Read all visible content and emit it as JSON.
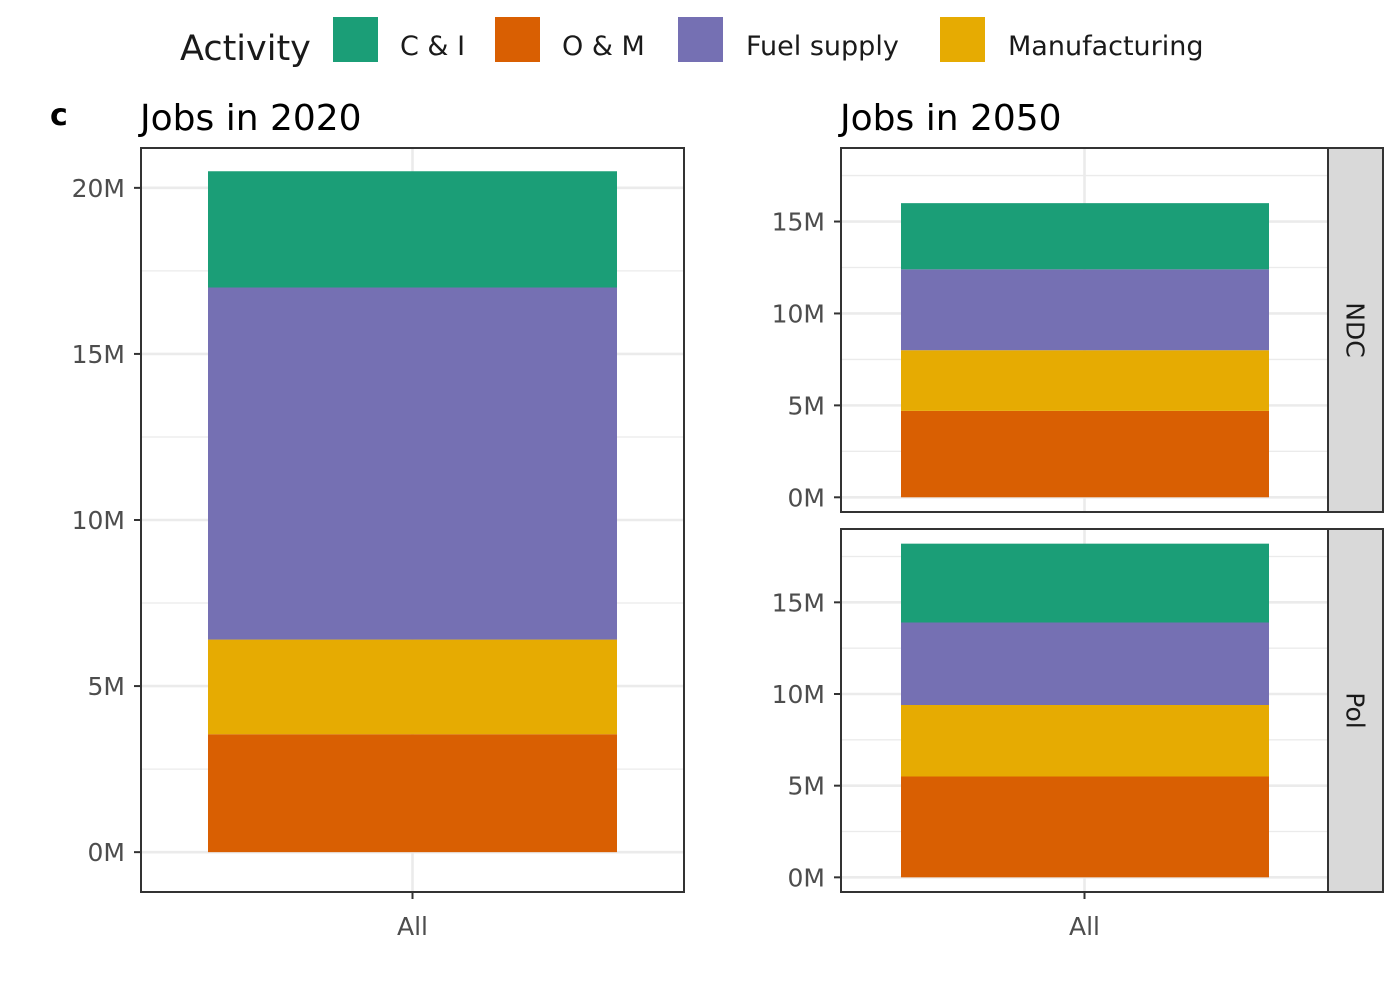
{
  "chart_data": {
    "type": "bar",
    "stacked": true,
    "legend": {
      "title": "Activity",
      "position": "top",
      "entries": [
        {
          "key": "ci",
          "label": "C & I",
          "color": "#1b9e77"
        },
        {
          "key": "om",
          "label": "O & M",
          "color": "#d95f02"
        },
        {
          "key": "fuel",
          "label": "Fuel supply",
          "color": "#7570b3"
        },
        {
          "key": "mfg",
          "label": "Manufacturing",
          "color": "#e6ab02"
        }
      ]
    },
    "stack_order_bottom_to_top": [
      "om",
      "mfg",
      "fuel",
      "ci"
    ],
    "panels": [
      {
        "tag": "c",
        "title": "Jobs in 2020",
        "facets": [
          {
            "strip": "",
            "categories": [
              "All"
            ],
            "ylim": [
              -1.2,
              21.2
            ],
            "yticks": [
              0,
              5,
              10,
              15,
              20
            ],
            "ytick_labels": [
              "0M",
              "5M",
              "10M",
              "15M",
              "20M"
            ],
            "values_millions": {
              "om": 3.55,
              "mfg": 2.85,
              "fuel": 10.6,
              "ci": 3.5
            }
          }
        ]
      },
      {
        "tag": "",
        "title": "Jobs in 2050",
        "facets": [
          {
            "strip": "NDC",
            "categories": [
              "All"
            ],
            "ylim": [
              -0.8,
              19.0
            ],
            "yticks": [
              0,
              5,
              10,
              15
            ],
            "ytick_labels": [
              "0M",
              "5M",
              "10M",
              "15M"
            ],
            "values_millions": {
              "om": 4.7,
              "mfg": 3.3,
              "fuel": 4.4,
              "ci": 3.6
            }
          },
          {
            "strip": "Pol",
            "categories": [
              "All"
            ],
            "ylim": [
              -0.8,
              19.0
            ],
            "yticks": [
              0,
              5,
              10,
              15
            ],
            "ytick_labels": [
              "0M",
              "5M",
              "10M",
              "15M"
            ],
            "values_millions": {
              "om": 5.5,
              "mfg": 3.9,
              "fuel": 4.5,
              "ci": 4.3
            }
          }
        ]
      }
    ],
    "xlabel": "",
    "ylabel": "",
    "grid": true
  }
}
